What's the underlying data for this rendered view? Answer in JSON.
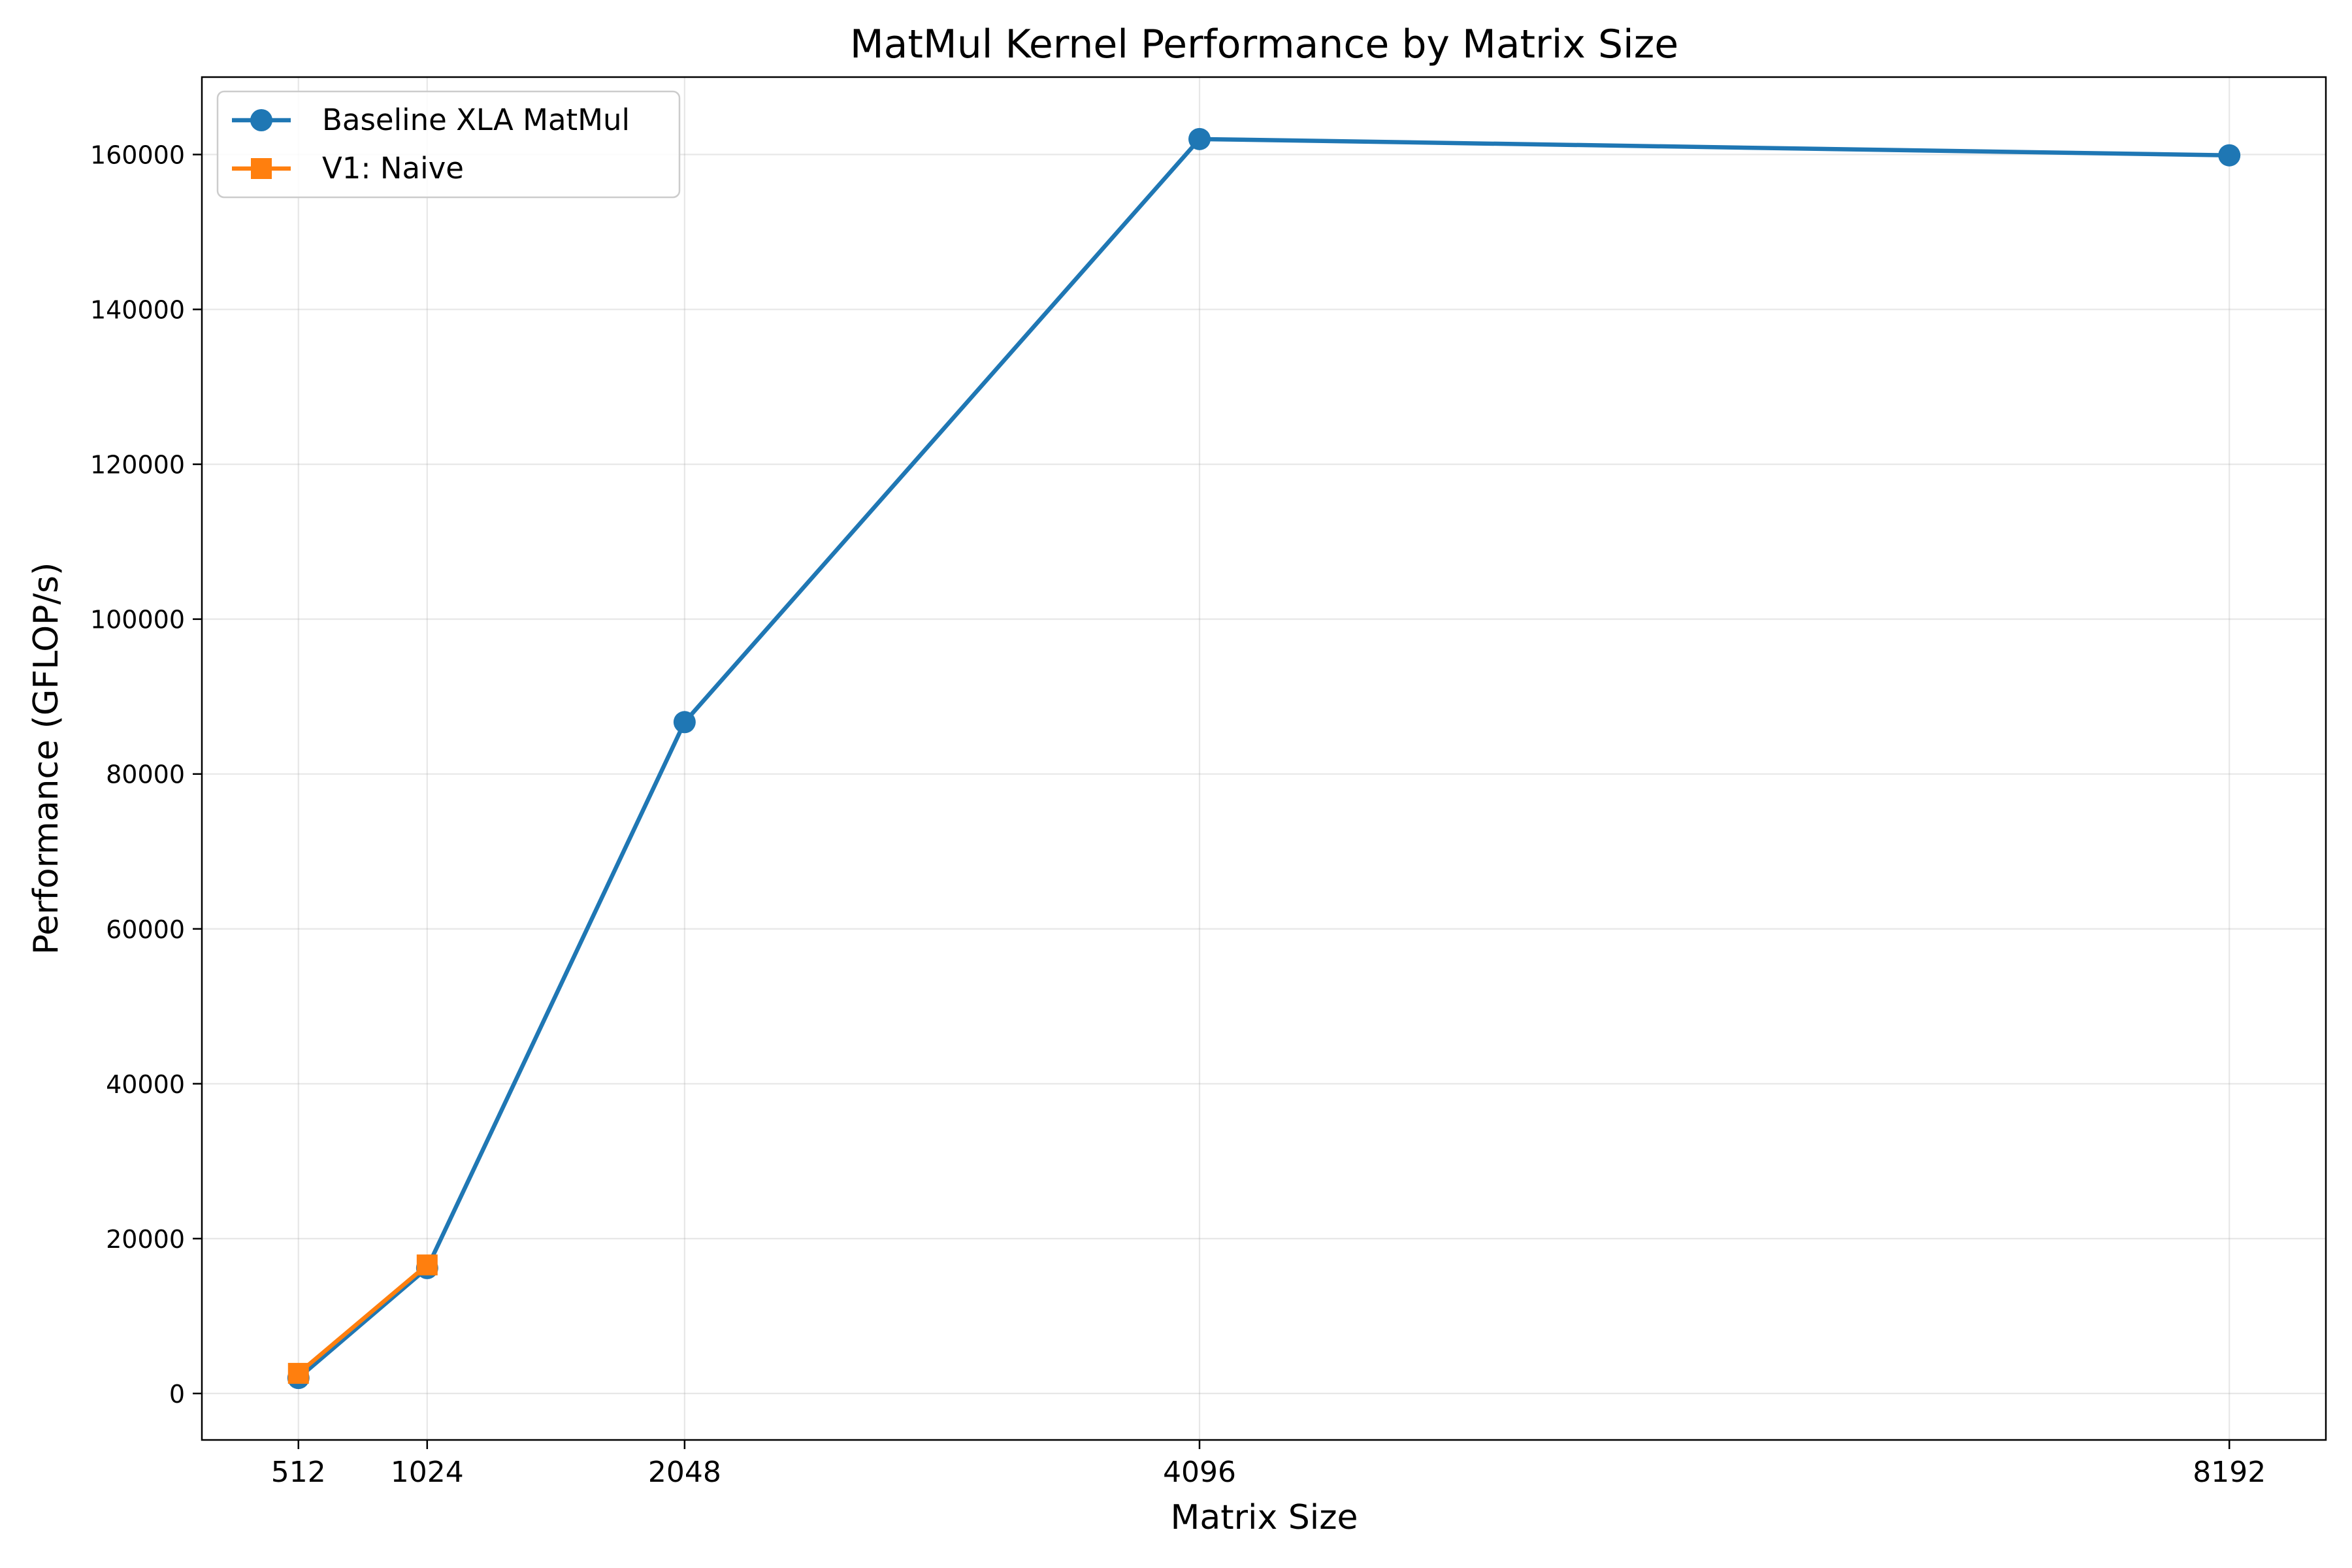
{
  "chart_data": {
    "type": "line",
    "title": "MatMul Kernel Performance by Matrix Size",
    "xlabel": "Matrix Size",
    "ylabel": "Performance (GFLOP/s)",
    "x_ticks": [
      512,
      1024,
      2048,
      4096,
      8192
    ],
    "x_tick_labels": [
      "512",
      "1024",
      "2048",
      "4096",
      "8192"
    ],
    "y_ticks": [
      0,
      20000,
      40000,
      60000,
      80000,
      100000,
      120000,
      140000,
      160000
    ],
    "y_tick_labels": [
      "0",
      "20000",
      "40000",
      "60000",
      "80000",
      "100000",
      "120000",
      "140000",
      "160000"
    ],
    "xlim": [
      128,
      8576
    ],
    "ylim": [
      -6000,
      170000
    ],
    "grid": true,
    "legend_position": "upper-left",
    "series": [
      {
        "name": "Baseline XLA MatMul",
        "color": "#1f77b4",
        "marker": "circle",
        "x": [
          512,
          1024,
          2048,
          4096,
          8192
        ],
        "y": [
          2000,
          16200,
          86700,
          162000,
          159900
        ]
      },
      {
        "name": "V1: Naive",
        "color": "#ff7f0e",
        "marker": "square",
        "x": [
          512,
          1024
        ],
        "y": [
          2600,
          16600
        ]
      }
    ]
  }
}
